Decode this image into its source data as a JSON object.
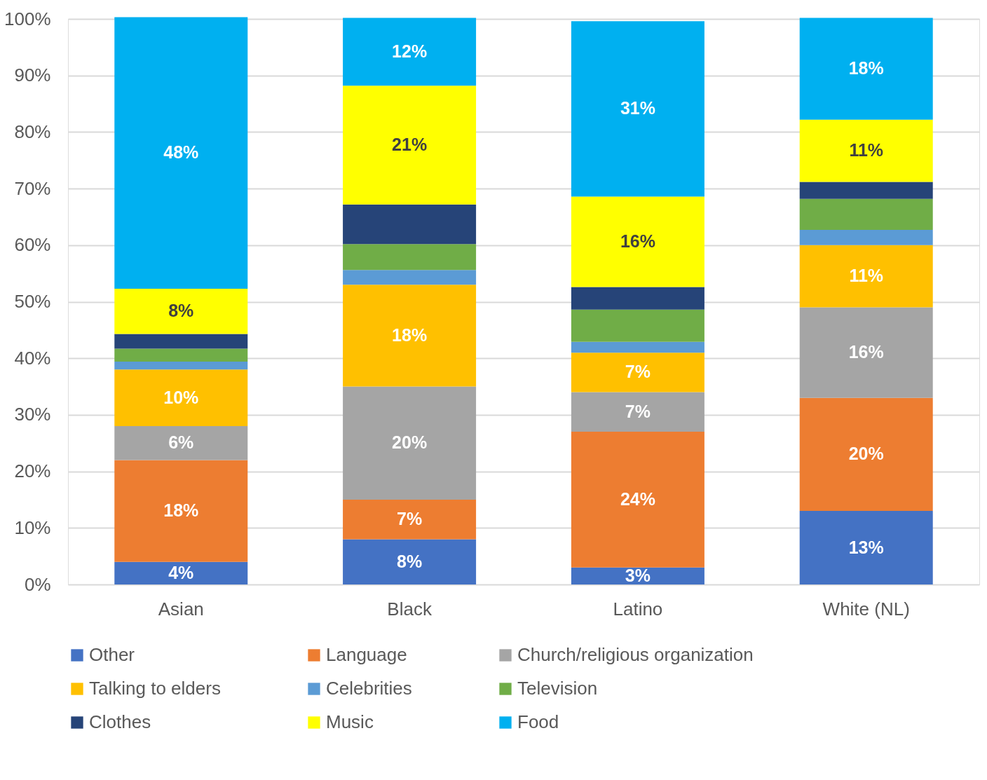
{
  "chart_data": {
    "type": "bar",
    "stacked": true,
    "categories": [
      "Asian",
      "Black",
      "Latino",
      "White (NL)"
    ],
    "series": [
      {
        "name": "Other",
        "color": "#4472c4",
        "values": [
          4,
          8,
          3,
          13
        ],
        "value_labels": [
          "4%",
          "8%",
          "3%",
          "13%"
        ]
      },
      {
        "name": "Language",
        "color": "#ed7d31",
        "values": [
          18,
          7,
          24,
          20
        ],
        "value_labels": [
          "18%",
          "7%",
          "24%",
          "20%"
        ]
      },
      {
        "name": "Church/religious organization",
        "color": "#a5a5a5",
        "values": [
          6,
          20,
          7,
          16
        ],
        "value_labels": [
          "6%",
          "20%",
          "7%",
          "16%"
        ]
      },
      {
        "name": "Talking to elders",
        "color": "#ffc000",
        "values": [
          10,
          18,
          7,
          11
        ],
        "value_labels": [
          "10%",
          "18%",
          "7%",
          "11%"
        ]
      },
      {
        "name": "Celebrities",
        "color": "#5b9bd5",
        "values": [
          1.4,
          2.6,
          1.9,
          2.7
        ],
        "value_labels": [
          null,
          null,
          null,
          null
        ]
      },
      {
        "name": "Television",
        "color": "#70ad47",
        "values": [
          2.3,
          4.6,
          5.7,
          5.5
        ],
        "value_labels": [
          null,
          null,
          null,
          null
        ]
      },
      {
        "name": "Clothes",
        "color": "#264478",
        "values": [
          2.6,
          7.0,
          4.0,
          3.0
        ],
        "value_labels": [
          null,
          null,
          null,
          null
        ]
      },
      {
        "name": "Music",
        "color": "#ffff00",
        "values": [
          8,
          21,
          16,
          11
        ],
        "value_labels": [
          "8%",
          "21%",
          "16%",
          "11%"
        ]
      },
      {
        "name": "Food",
        "color": "#00b0f0",
        "values": [
          48,
          12,
          31,
          18
        ],
        "value_labels": [
          "48%",
          "12%",
          "31%",
          "18%"
        ]
      }
    ],
    "ylim": [
      0,
      100
    ],
    "yticks": [
      {
        "value": 0,
        "label": "0%"
      },
      {
        "value": 10,
        "label": "10%"
      },
      {
        "value": 20,
        "label": "20%"
      },
      {
        "value": 30,
        "label": "30%"
      },
      {
        "value": 40,
        "label": "40%"
      },
      {
        "value": 50,
        "label": "50%"
      },
      {
        "value": 60,
        "label": "60%"
      },
      {
        "value": 70,
        "label": "70%"
      },
      {
        "value": 80,
        "label": "80%"
      },
      {
        "value": 90,
        "label": "90%"
      },
      {
        "value": 100,
        "label": "100%"
      }
    ],
    "grid": "y",
    "legend": "bottom"
  }
}
